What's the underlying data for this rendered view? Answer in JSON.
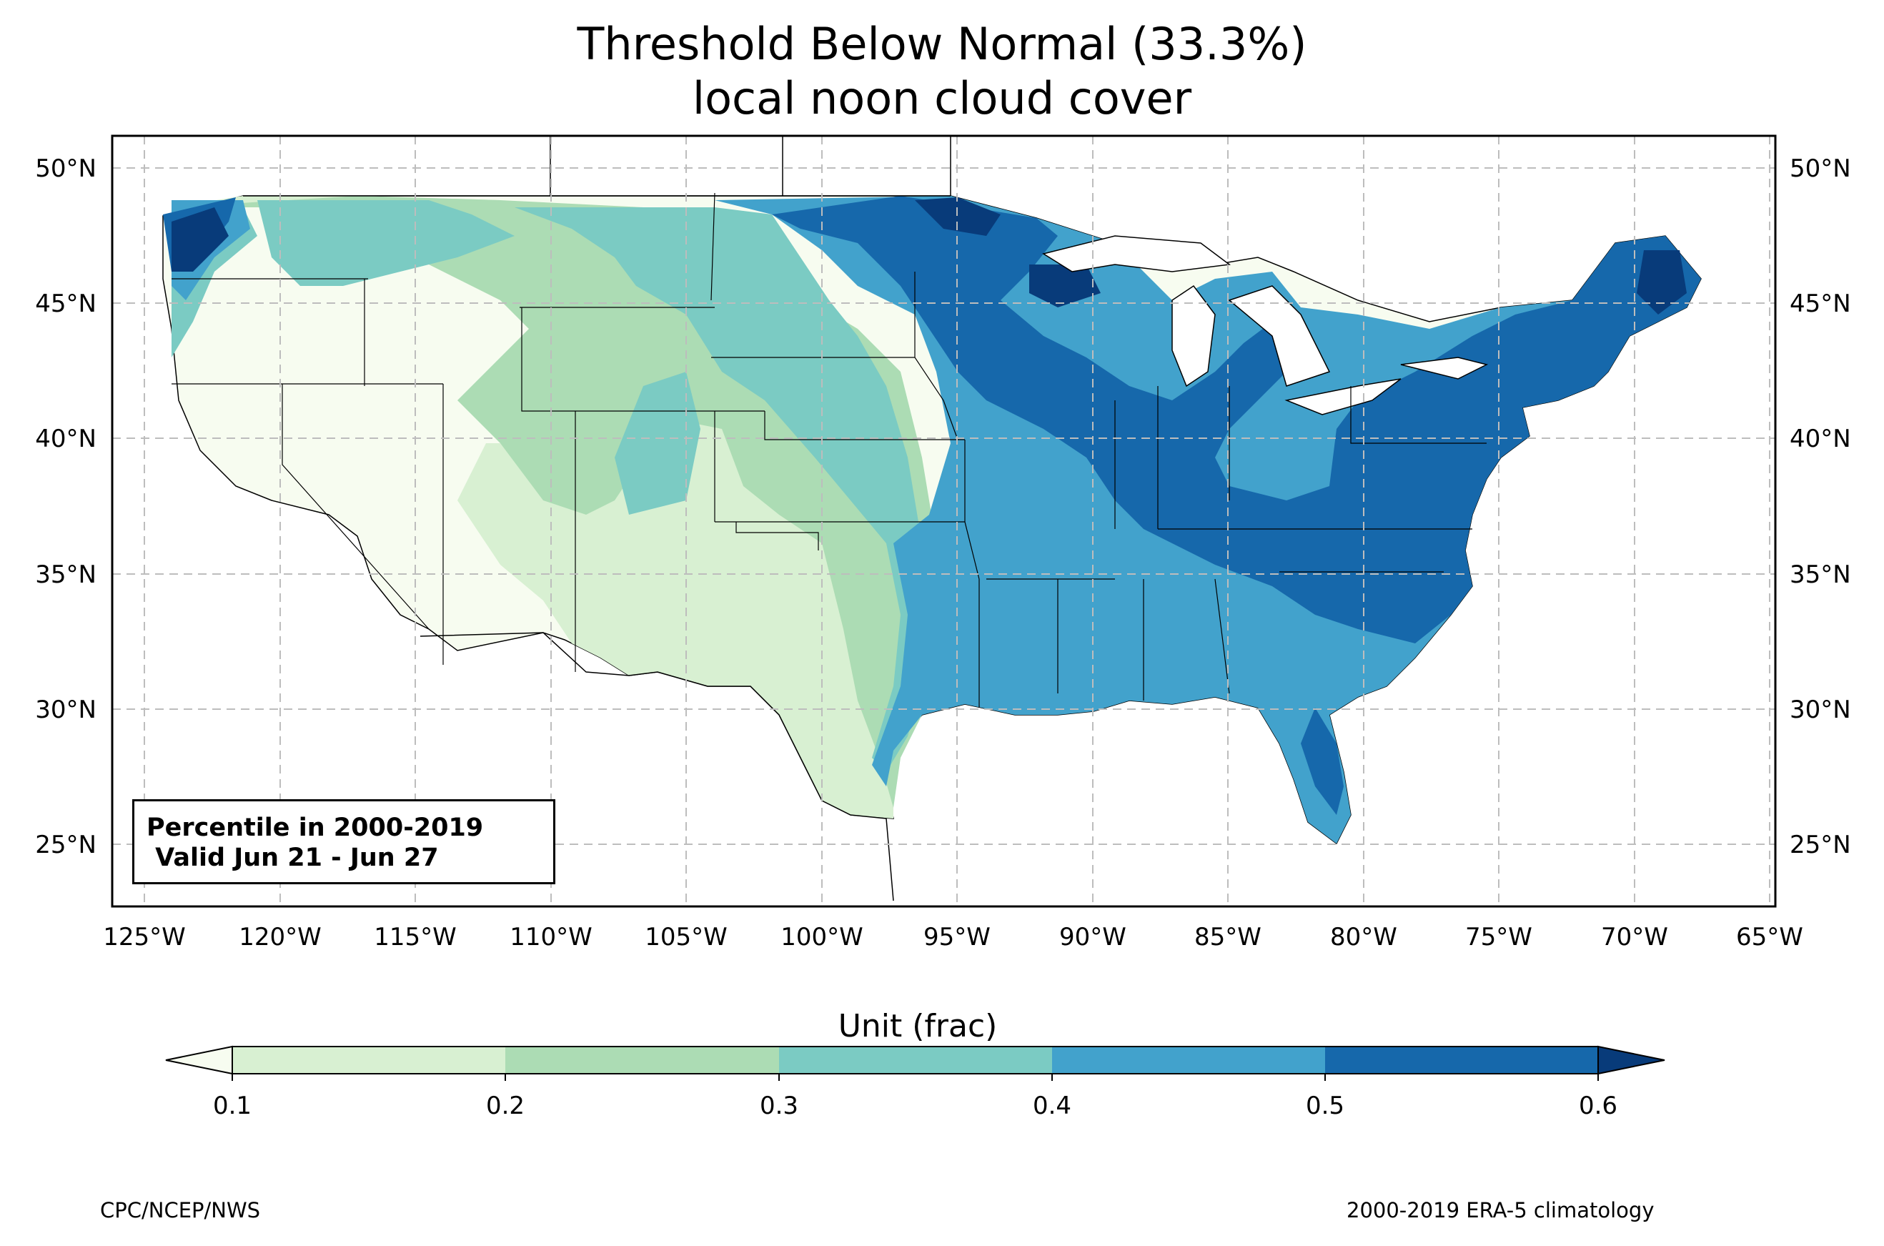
{
  "title": {
    "line1": "Threshold Below Normal (33.3%)",
    "line2": "local noon cloud cover"
  },
  "info_box": {
    "line1": "Percentile in 2000-2019",
    "line2": " Valid Jun 21 - Jun 27"
  },
  "colorbar": {
    "title": "Unit (frac)",
    "ticks": [
      "0.1",
      "0.2",
      "0.3",
      "0.4",
      "0.5",
      "0.6"
    ],
    "bins": [
      {
        "from": "<0.1",
        "color": "#f7fcf0"
      },
      {
        "from": "0.1",
        "color": "#d8f0d2"
      },
      {
        "from": "0.2",
        "color": "#acdcb4"
      },
      {
        "from": "0.3",
        "color": "#7bcbc3"
      },
      {
        "from": "0.4",
        "color": "#42a2cc"
      },
      {
        "from": "0.5",
        "color": "#1668ab"
      },
      {
        "from": ">0.6",
        "color": "#083b7a"
      }
    ]
  },
  "axes": {
    "lon_ticks": [
      "125°W",
      "120°W",
      "115°W",
      "110°W",
      "105°W",
      "100°W",
      "95°W",
      "90°W",
      "85°W",
      "80°W",
      "75°W",
      "70°W",
      "65°W"
    ],
    "lat_ticks": [
      "50°N",
      "45°N",
      "40°N",
      "35°N",
      "30°N",
      "25°N"
    ],
    "lon_range": [
      -126.3,
      -64.8
    ],
    "lat_range": [
      22.7,
      51.2
    ],
    "grid": "dashed"
  },
  "credits": {
    "left": "CPC/NCEP/NWS",
    "right": "2000-2019 ERA-5 climatology"
  }
}
